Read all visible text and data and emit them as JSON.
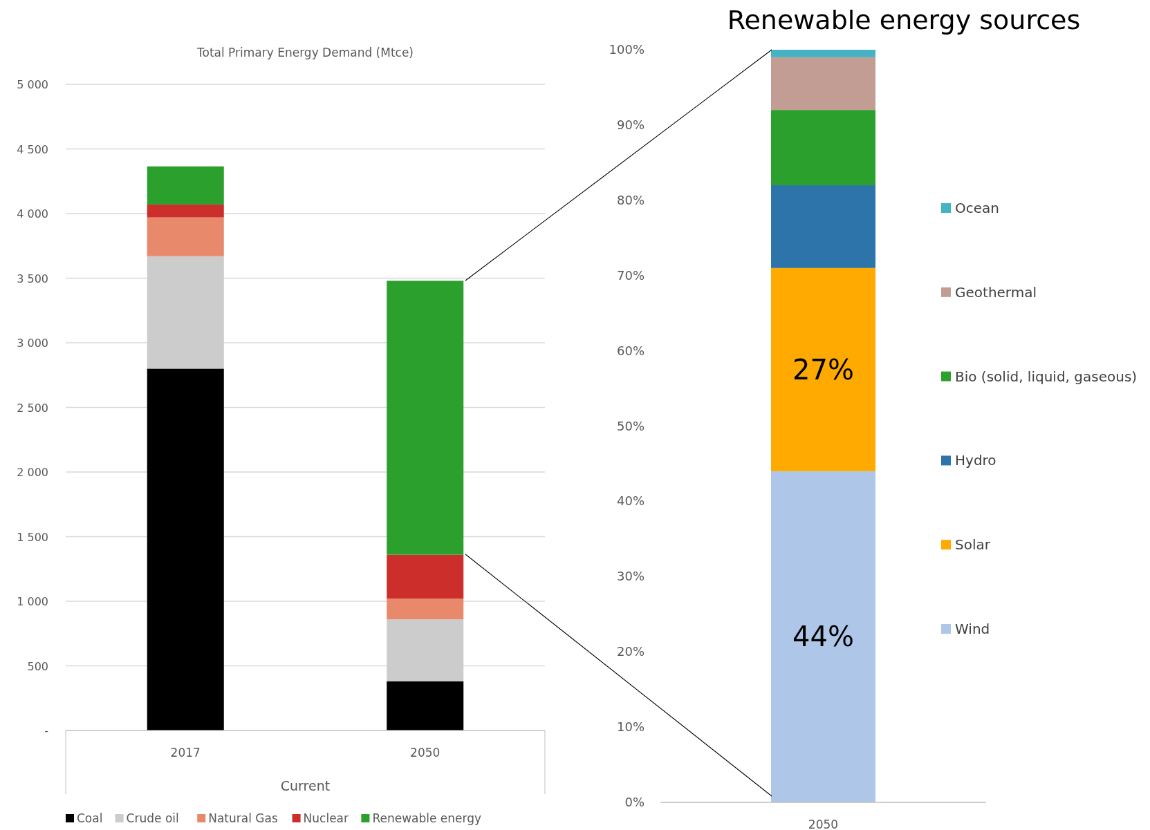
{
  "chart_data": [
    {
      "type": "bar",
      "title": "Total Primary Energy Demand (Mtce)",
      "xlabel": "Current",
      "categories": [
        "2017",
        "2050"
      ],
      "stacked": true,
      "grid": "y",
      "legend": "bottom",
      "ylim": [
        0,
        5000
      ],
      "yticks": [
        {
          "value": 0,
          "label": "-"
        },
        {
          "value": 500,
          "label": "500"
        },
        {
          "value": 1000,
          "label": "1 000"
        },
        {
          "value": 1500,
          "label": "1 500"
        },
        {
          "value": 2000,
          "label": "2 000"
        },
        {
          "value": 2500,
          "label": "2 500"
        },
        {
          "value": 3000,
          "label": "3 000"
        },
        {
          "value": 3500,
          "label": "3 500"
        },
        {
          "value": 4000,
          "label": "4 000"
        },
        {
          "value": 4500,
          "label": "4 500"
        },
        {
          "value": 5000,
          "label": "5 000"
        }
      ],
      "series": [
        {
          "name": "Coal",
          "color": "#000000",
          "values": [
            2800,
            380
          ]
        },
        {
          "name": "Crude oil",
          "color": "#cccccc",
          "values": [
            870,
            480
          ]
        },
        {
          "name": "Natural Gas",
          "color": "#e8896c",
          "values": [
            300,
            160
          ]
        },
        {
          "name": "Nuclear",
          "color": "#cc2e2b",
          "values": [
            100,
            340
          ]
        },
        {
          "name": "Renewable energy",
          "color": "#2ca02c",
          "values": [
            295,
            2120
          ]
        }
      ]
    },
    {
      "type": "bar",
      "title": "Renewable energy sources",
      "categories": [
        "2050"
      ],
      "stacked": true,
      "grid": false,
      "legend": "right",
      "ylim": [
        0,
        100
      ],
      "yticks": [
        {
          "value": 0,
          "label": "0%"
        },
        {
          "value": 10,
          "label": "10%"
        },
        {
          "value": 20,
          "label": "20%"
        },
        {
          "value": 30,
          "label": "30%"
        },
        {
          "value": 40,
          "label": "40%"
        },
        {
          "value": 50,
          "label": "50%"
        },
        {
          "value": 60,
          "label": "60%"
        },
        {
          "value": 70,
          "label": "70%"
        },
        {
          "value": 80,
          "label": "80%"
        },
        {
          "value": 90,
          "label": "90%"
        },
        {
          "value": 100,
          "label": "100%"
        }
      ],
      "series": [
        {
          "name": "Wind",
          "color": "#aec7e8",
          "values": [
            44
          ],
          "value_labels": [
            "44%"
          ]
        },
        {
          "name": "Solar",
          "color": "#ffaa00",
          "values": [
            27
          ],
          "value_labels": [
            "27%"
          ]
        },
        {
          "name": "Hydro",
          "color": "#2c74aa",
          "values": [
            11
          ]
        },
        {
          "name": "Bio (solid, liquid, gaseous)",
          "color": "#2ca02c",
          "values": [
            10
          ]
        },
        {
          "name": "Geothermal",
          "color": "#c29d94",
          "values": [
            7
          ]
        },
        {
          "name": "Ocean",
          "color": "#45b3c4",
          "values": [
            1
          ]
        }
      ]
    }
  ]
}
